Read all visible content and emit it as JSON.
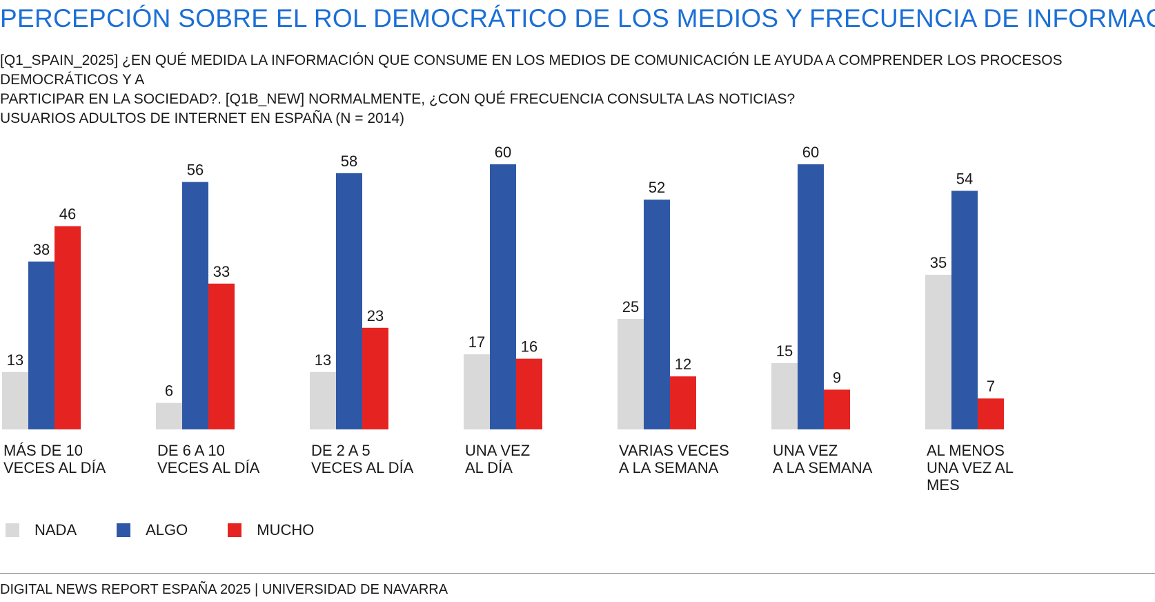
{
  "header": {
    "title": "PERCEPCIÓN SOBRE EL ROL DEMOCRÁTICO DE LOS MEDIOS Y FRECUENCIA DE INFORMACIÓN",
    "subtitle_line1": "[Q1_SPAIN_2025] ¿EN QUÉ MEDIDA LA INFORMACIÓN QUE CONSUME EN LOS MEDIOS DE COMUNICACIÓN LE AYUDA A COMPRENDER LOS PROCESOS DEMOCRÁTICOS Y A",
    "subtitle_line2": "PARTICIPAR EN LA SOCIEDAD?. [Q1B_NEW] NORMALMENTE, ¿CON QUÉ FRECUENCIA CONSULTA LAS NOTICIAS?",
    "subtitle_line3": "USUARIOS ADULTOS DE INTERNET EN ESPAÑA (N = 2014)"
  },
  "chart_data": {
    "type": "bar",
    "categories": [
      "MÁS DE 10\nVECES AL DÍA",
      "DE 6 A 10\nVECES AL DÍA",
      "DE 2 A 5\nVECES AL DÍA",
      "UNA VEZ\nAL DÍA",
      "VARIAS VECES\nA LA SEMANA",
      "UNA VEZ\nA LA SEMANA",
      "AL MENOS\nUNA VEZ AL\nMES"
    ],
    "series": [
      {
        "name": "NADA",
        "color": "#d9d9d9",
        "values": [
          13,
          6,
          13,
          17,
          25,
          15,
          35
        ]
      },
      {
        "name": "ALGO",
        "color": "#2e58a6",
        "values": [
          38,
          56,
          58,
          60,
          52,
          60,
          54
        ]
      },
      {
        "name": "MUCHO",
        "color": "#e52421",
        "values": [
          46,
          33,
          23,
          16,
          12,
          9,
          7
        ]
      }
    ],
    "ylim": [
      0,
      60
    ],
    "grid": false,
    "legend_position": "bottom-left",
    "data_labels": true
  },
  "footer": {
    "source": "DIGITAL NEWS REPORT ESPAÑA 2025 | UNIVERSIDAD DE NAVARRA"
  }
}
